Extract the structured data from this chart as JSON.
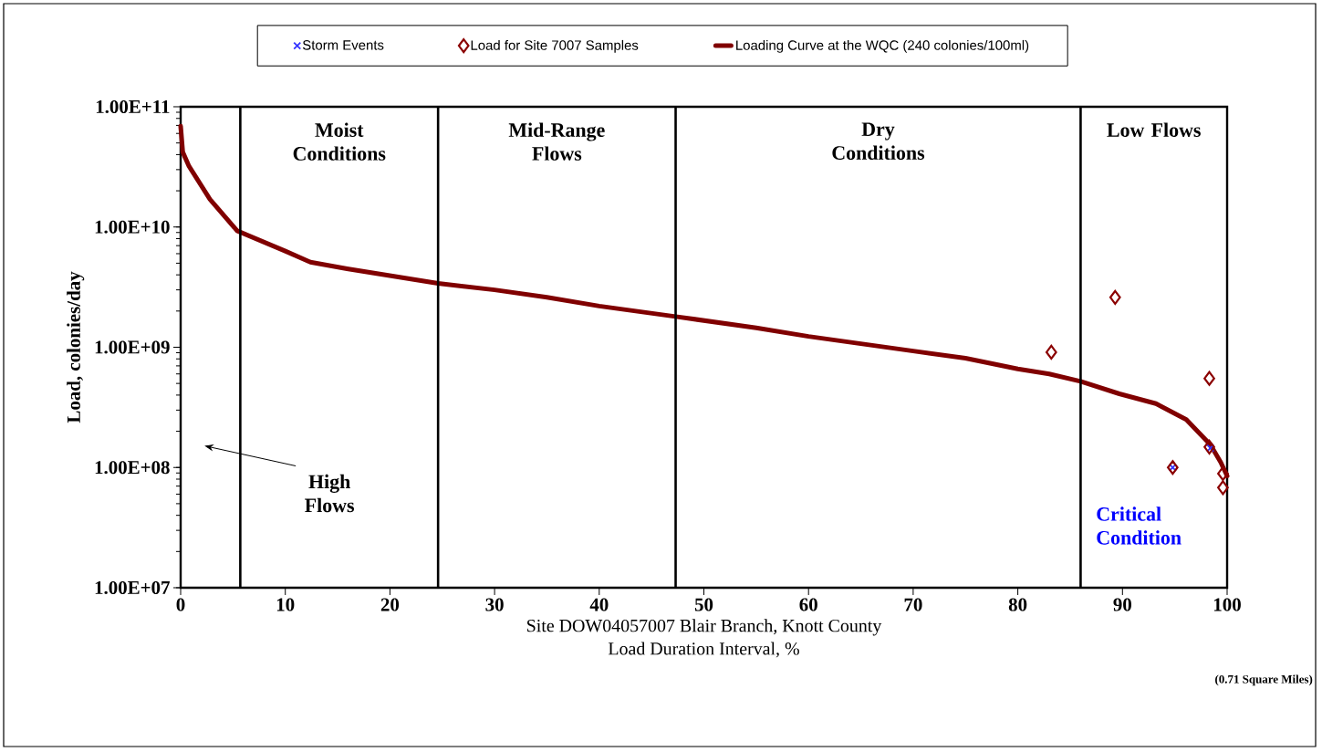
{
  "chart_data": {
    "type": "line",
    "xlabel": "Load Duration Interval, %",
    "ylabel": "Load, colonies/day",
    "xlim": [
      0,
      100
    ],
    "xticks": [
      0,
      10,
      20,
      30,
      40,
      50,
      60,
      70,
      80,
      90,
      100
    ],
    "ylim": [
      10000000.0,
      100000000000.0
    ],
    "yticks": [
      {
        "value": 10000000.0,
        "label": "1.00E+07"
      },
      {
        "value": 100000000.0,
        "label": "1.00E+08"
      },
      {
        "value": 1000000000.0,
        "label": "1.00E+09"
      },
      {
        "value": 10000000000.0,
        "label": "1.00E+10"
      },
      {
        "value": 100000000000.0,
        "label": "1.00E+11"
      }
    ],
    "log": "y",
    "grid": false,
    "legend": "top",
    "series": [
      {
        "name": "Storm Events",
        "type": "scatter",
        "marker": "cross",
        "color": "#3333ff",
        "x": [
          94.8,
          98.4
        ],
        "values": [
          100000000.0,
          145000000.0
        ]
      },
      {
        "name": "Load for Site 7007 Samples",
        "type": "scatter",
        "marker": "diamond",
        "color": "#8b0000",
        "x": [
          83.2,
          89.3,
          94.8,
          98.3,
          98.3,
          99.6,
          99.6
        ],
        "values": [
          910000000.0,
          2600000000.0,
          100000000.0,
          550000000.0,
          148000000.0,
          89000000.0,
          68000000.0
        ]
      },
      {
        "name": "Loading Curve at the WQC (240 colonies/100ml)",
        "marker": "none",
        "color": "#800000",
        "x": [
          0,
          0.2,
          0.8,
          2.8,
          5.4,
          10.0,
          12.4,
          15.9,
          24.6,
          30,
          35,
          40,
          47.3,
          55,
          60,
          65,
          70,
          75,
          80,
          83,
          86,
          89.7,
          93.2,
          96.1,
          98.4,
          99.4,
          100
        ],
        "values": [
          69000000000.0,
          42000000000.0,
          32000000000.0,
          17000000000.0,
          9300000000.0,
          6300000000.0,
          5100000000.0,
          4500000000.0,
          3400000000.0,
          3000000000.0,
          2600000000.0,
          2200000000.0,
          1800000000.0,
          1450000000.0,
          1230000000.0,
          1070000000.0,
          930000000.0,
          810000000.0,
          660000000.0,
          600000000.0,
          520000000.0,
          410000000.0,
          340000000.0,
          250000000.0,
          155000000.0,
          110000000.0,
          85000000.0
        ]
      }
    ],
    "ref_lines": [
      {
        "axis": "x",
        "value": 5.7,
        "color": "#000000"
      },
      {
        "axis": "x",
        "value": 24.6,
        "color": "#000000"
      },
      {
        "axis": "x",
        "value": 47.3,
        "color": "#000000"
      },
      {
        "axis": "x",
        "value": 86,
        "color": "#000000"
      }
    ],
    "annotations": [
      "Site DOW04057007 Blair Branch, Knott County",
      "(0.71 Square Miles)",
      "Critical Condition",
      "High Flows",
      "Moist Conditions",
      "Mid-Range Flows",
      "Dry Conditions",
      "Low Flows"
    ]
  }
}
